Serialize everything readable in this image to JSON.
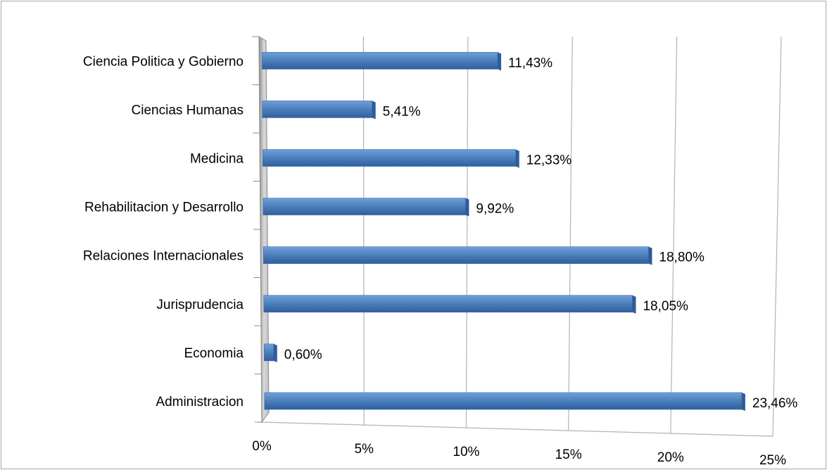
{
  "chart_data": {
    "type": "bar",
    "orientation": "horizontal",
    "categories": [
      "Ciencia Politica y Gobierno",
      "Ciencias Humanas",
      "Medicina",
      "Rehabilitacion y Desarrollo",
      "Relaciones Internacionales",
      "Jurisprudencia",
      "Economia",
      "Administracion"
    ],
    "values": [
      11.43,
      5.41,
      12.33,
      9.92,
      18.8,
      18.05,
      0.6,
      23.46
    ],
    "data_labels": [
      "11,43%",
      "5,41%",
      "12,33%",
      "9,92%",
      "18,80%",
      "18,05%",
      "0,60%",
      "23,46%"
    ],
    "x_ticks": [
      0,
      5,
      10,
      15,
      20,
      25
    ],
    "x_tick_labels": [
      "0%",
      "5%",
      "10%",
      "15%",
      "20%",
      "25%"
    ],
    "xlim": [
      0,
      25
    ],
    "grid": true,
    "legend": "none",
    "style": "3d",
    "colors": {
      "bar": "#4f81bd",
      "bar_dark": "#2c5d9a",
      "grid": "#b3b3b3"
    }
  }
}
